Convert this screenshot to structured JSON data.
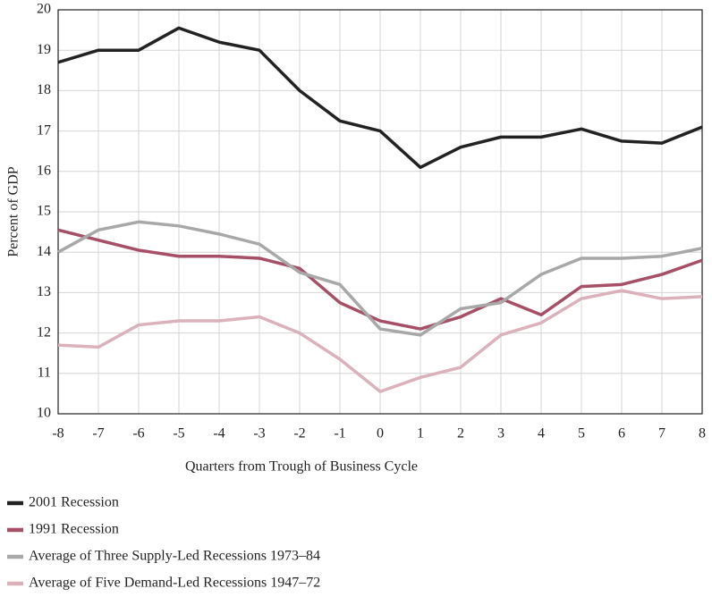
{
  "chart_data": {
    "type": "line",
    "x_label": "Quarters from Trough of Business Cycle",
    "y_label": "Percent of GDP",
    "x": [
      -8,
      -7,
      -6,
      -5,
      -4,
      -3,
      -2,
      -1,
      0,
      1,
      2,
      3,
      4,
      5,
      6,
      7,
      8
    ],
    "series": [
      {
        "name": "2001 Recession",
        "color": "#222222",
        "values": [
          18.7,
          19.0,
          19.0,
          19.55,
          19.2,
          19.0,
          18.0,
          17.25,
          17.0,
          16.1,
          16.6,
          16.85,
          16.85,
          17.05,
          16.75,
          16.7,
          17.1
        ]
      },
      {
        "name": "1991 Recession",
        "color": "#a64f67",
        "values": [
          14.55,
          14.3,
          14.05,
          13.9,
          13.9,
          13.85,
          13.6,
          12.75,
          12.3,
          12.1,
          12.4,
          12.85,
          12.45,
          13.15,
          13.2,
          13.45,
          13.8
        ]
      },
      {
        "name": "Average of Three Supply-Led Recessions 1973–84",
        "color": "#a8a8a8",
        "values": [
          14.0,
          14.55,
          14.75,
          14.65,
          14.45,
          14.2,
          13.5,
          13.2,
          12.1,
          11.95,
          12.6,
          12.75,
          13.45,
          13.85,
          13.85,
          13.9,
          14.1
        ]
      },
      {
        "name": "Average of Five Demand-Led Recessions 1947–72",
        "color": "#dbb2bb",
        "values": [
          11.7,
          11.65,
          12.2,
          12.3,
          12.3,
          12.4,
          12.0,
          11.35,
          10.55,
          10.9,
          11.15,
          11.95,
          12.25,
          12.85,
          13.05,
          12.85,
          12.9
        ]
      }
    ],
    "xlim": [
      -8,
      8
    ],
    "xticks": [
      -8,
      -7,
      -6,
      -5,
      -4,
      -3,
      -2,
      -1,
      0,
      1,
      2,
      3,
      4,
      5,
      6,
      7,
      8
    ],
    "ylim": [
      10,
      20
    ],
    "yticks": [
      10,
      11,
      12,
      13,
      14,
      15,
      16,
      17,
      18,
      19,
      20
    ],
    "grid": true,
    "legend": "bottom-left"
  }
}
